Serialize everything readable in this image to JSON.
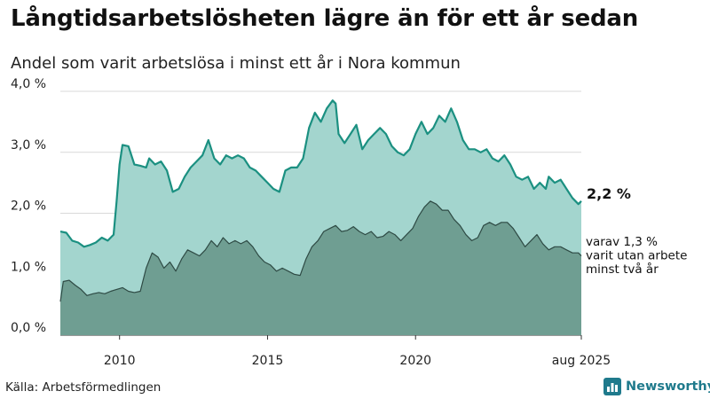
{
  "title": "Långtidsarbetslösheten lägre än för ett år sedan",
  "subtitle": "Andel som varit arbetslösa i minst ett år i Nora kommun",
  "source": "Källa: Arbetsförmedlingen",
  "brand": {
    "name": "Newsworthy",
    "icon": "bar-chart-icon"
  },
  "colors": {
    "long_fill": "#a3d5ce",
    "long_line": "#1b9081",
    "very_long_fill": "#6f9e92",
    "very_long_line": "#2e4a44",
    "grid": "#d9d9d9",
    "brand": "#1f7a8c"
  },
  "chart_data": {
    "type": "area",
    "x_unit": "year",
    "ylim": [
      0,
      4
    ],
    "yticks": [
      {
        "value": 0,
        "label": "0,0 %"
      },
      {
        "value": 1,
        "label": "1,0 %"
      },
      {
        "value": 2,
        "label": "2,0 %"
      },
      {
        "value": 3,
        "label": "3,0 %"
      },
      {
        "value": 4,
        "label": "4,0 %"
      }
    ],
    "xticks": [
      {
        "value": 2010,
        "label": "2010"
      },
      {
        "value": 2015,
        "label": "2015"
      },
      {
        "value": 2020,
        "label": "2020"
      },
      {
        "value": 2025.6,
        "label": "aug 2025"
      }
    ],
    "grid": true,
    "series": [
      {
        "name": "",
        "end_label": "2,2 %",
        "values": [
          [
            2008.0,
            1.7
          ],
          [
            2008.2,
            1.68
          ],
          [
            2008.4,
            1.55
          ],
          [
            2008.6,
            1.52
          ],
          [
            2008.8,
            1.45
          ],
          [
            2009.0,
            1.48
          ],
          [
            2009.2,
            1.52
          ],
          [
            2009.4,
            1.6
          ],
          [
            2009.6,
            1.55
          ],
          [
            2009.8,
            1.65
          ],
          [
            2009.9,
            2.2
          ],
          [
            2010.0,
            2.8
          ],
          [
            2010.1,
            3.12
          ],
          [
            2010.3,
            3.1
          ],
          [
            2010.5,
            2.8
          ],
          [
            2010.7,
            2.78
          ],
          [
            2010.9,
            2.75
          ],
          [
            2011.0,
            2.9
          ],
          [
            2011.2,
            2.8
          ],
          [
            2011.4,
            2.85
          ],
          [
            2011.6,
            2.7
          ],
          [
            2011.8,
            2.35
          ],
          [
            2012.0,
            2.4
          ],
          [
            2012.2,
            2.6
          ],
          [
            2012.4,
            2.75
          ],
          [
            2012.6,
            2.85
          ],
          [
            2012.8,
            2.95
          ],
          [
            2013.0,
            3.2
          ],
          [
            2013.2,
            2.9
          ],
          [
            2013.4,
            2.8
          ],
          [
            2013.6,
            2.95
          ],
          [
            2013.8,
            2.9
          ],
          [
            2014.0,
            2.95
          ],
          [
            2014.2,
            2.9
          ],
          [
            2014.4,
            2.75
          ],
          [
            2014.6,
            2.7
          ],
          [
            2014.8,
            2.6
          ],
          [
            2015.0,
            2.5
          ],
          [
            2015.2,
            2.4
          ],
          [
            2015.4,
            2.35
          ],
          [
            2015.6,
            2.7
          ],
          [
            2015.8,
            2.75
          ],
          [
            2016.0,
            2.75
          ],
          [
            2016.2,
            2.9
          ],
          [
            2016.4,
            3.4
          ],
          [
            2016.6,
            3.65
          ],
          [
            2016.8,
            3.5
          ],
          [
            2017.0,
            3.72
          ],
          [
            2017.2,
            3.85
          ],
          [
            2017.3,
            3.8
          ],
          [
            2017.4,
            3.3
          ],
          [
            2017.6,
            3.15
          ],
          [
            2017.8,
            3.3
          ],
          [
            2018.0,
            3.45
          ],
          [
            2018.2,
            3.05
          ],
          [
            2018.4,
            3.2
          ],
          [
            2018.6,
            3.3
          ],
          [
            2018.8,
            3.4
          ],
          [
            2019.0,
            3.3
          ],
          [
            2019.2,
            3.1
          ],
          [
            2019.4,
            3.0
          ],
          [
            2019.6,
            2.95
          ],
          [
            2019.8,
            3.05
          ],
          [
            2020.0,
            3.3
          ],
          [
            2020.2,
            3.5
          ],
          [
            2020.4,
            3.3
          ],
          [
            2020.6,
            3.4
          ],
          [
            2020.8,
            3.6
          ],
          [
            2021.0,
            3.5
          ],
          [
            2021.2,
            3.72
          ],
          [
            2021.4,
            3.5
          ],
          [
            2021.6,
            3.2
          ],
          [
            2021.8,
            3.05
          ],
          [
            2022.0,
            3.05
          ],
          [
            2022.2,
            3.0
          ],
          [
            2022.4,
            3.05
          ],
          [
            2022.6,
            2.9
          ],
          [
            2022.8,
            2.85
          ],
          [
            2023.0,
            2.95
          ],
          [
            2023.2,
            2.8
          ],
          [
            2023.4,
            2.6
          ],
          [
            2023.6,
            2.55
          ],
          [
            2023.8,
            2.6
          ],
          [
            2024.0,
            2.4
          ],
          [
            2024.2,
            2.5
          ],
          [
            2024.4,
            2.4
          ],
          [
            2024.5,
            2.6
          ],
          [
            2024.7,
            2.5
          ],
          [
            2024.9,
            2.55
          ],
          [
            2025.1,
            2.4
          ],
          [
            2025.3,
            2.25
          ],
          [
            2025.5,
            2.15
          ],
          [
            2025.6,
            2.2
          ]
        ]
      },
      {
        "name": "",
        "end_label": [
          "varav 1,3 %",
          "varit utan arbete",
          "minst två år"
        ],
        "values": [
          [
            2008.0,
            0.55
          ],
          [
            2008.1,
            0.88
          ],
          [
            2008.3,
            0.9
          ],
          [
            2008.5,
            0.82
          ],
          [
            2008.7,
            0.75
          ],
          [
            2008.9,
            0.65
          ],
          [
            2009.1,
            0.68
          ],
          [
            2009.3,
            0.7
          ],
          [
            2009.5,
            0.68
          ],
          [
            2009.7,
            0.72
          ],
          [
            2009.9,
            0.75
          ],
          [
            2010.1,
            0.78
          ],
          [
            2010.3,
            0.72
          ],
          [
            2010.5,
            0.7
          ],
          [
            2010.7,
            0.72
          ],
          [
            2010.9,
            1.1
          ],
          [
            2011.1,
            1.35
          ],
          [
            2011.3,
            1.28
          ],
          [
            2011.5,
            1.1
          ],
          [
            2011.7,
            1.2
          ],
          [
            2011.9,
            1.05
          ],
          [
            2012.1,
            1.25
          ],
          [
            2012.3,
            1.4
          ],
          [
            2012.5,
            1.35
          ],
          [
            2012.7,
            1.3
          ],
          [
            2012.9,
            1.4
          ],
          [
            2013.1,
            1.55
          ],
          [
            2013.3,
            1.45
          ],
          [
            2013.5,
            1.6
          ],
          [
            2013.7,
            1.5
          ],
          [
            2013.9,
            1.55
          ],
          [
            2014.1,
            1.5
          ],
          [
            2014.3,
            1.55
          ],
          [
            2014.5,
            1.45
          ],
          [
            2014.7,
            1.3
          ],
          [
            2014.9,
            1.2
          ],
          [
            2015.1,
            1.15
          ],
          [
            2015.3,
            1.05
          ],
          [
            2015.5,
            1.1
          ],
          [
            2015.7,
            1.05
          ],
          [
            2015.9,
            1.0
          ],
          [
            2016.1,
            0.98
          ],
          [
            2016.3,
            1.25
          ],
          [
            2016.5,
            1.45
          ],
          [
            2016.7,
            1.55
          ],
          [
            2016.9,
            1.7
          ],
          [
            2017.1,
            1.75
          ],
          [
            2017.3,
            1.8
          ],
          [
            2017.5,
            1.7
          ],
          [
            2017.7,
            1.72
          ],
          [
            2017.9,
            1.78
          ],
          [
            2018.1,
            1.7
          ],
          [
            2018.3,
            1.65
          ],
          [
            2018.5,
            1.7
          ],
          [
            2018.7,
            1.6
          ],
          [
            2018.9,
            1.62
          ],
          [
            2019.1,
            1.7
          ],
          [
            2019.3,
            1.65
          ],
          [
            2019.5,
            1.55
          ],
          [
            2019.7,
            1.65
          ],
          [
            2019.9,
            1.75
          ],
          [
            2020.1,
            1.95
          ],
          [
            2020.3,
            2.1
          ],
          [
            2020.5,
            2.2
          ],
          [
            2020.7,
            2.15
          ],
          [
            2020.9,
            2.05
          ],
          [
            2021.1,
            2.05
          ],
          [
            2021.3,
            1.9
          ],
          [
            2021.5,
            1.8
          ],
          [
            2021.7,
            1.65
          ],
          [
            2021.9,
            1.55
          ],
          [
            2022.1,
            1.6
          ],
          [
            2022.3,
            1.8
          ],
          [
            2022.5,
            1.85
          ],
          [
            2022.7,
            1.8
          ],
          [
            2022.9,
            1.85
          ],
          [
            2023.1,
            1.85
          ],
          [
            2023.3,
            1.75
          ],
          [
            2023.5,
            1.6
          ],
          [
            2023.7,
            1.45
          ],
          [
            2023.9,
            1.55
          ],
          [
            2024.1,
            1.65
          ],
          [
            2024.3,
            1.5
          ],
          [
            2024.5,
            1.4
          ],
          [
            2024.7,
            1.45
          ],
          [
            2024.9,
            1.45
          ],
          [
            2025.1,
            1.4
          ],
          [
            2025.3,
            1.35
          ],
          [
            2025.5,
            1.35
          ],
          [
            2025.6,
            1.3
          ]
        ]
      }
    ]
  }
}
